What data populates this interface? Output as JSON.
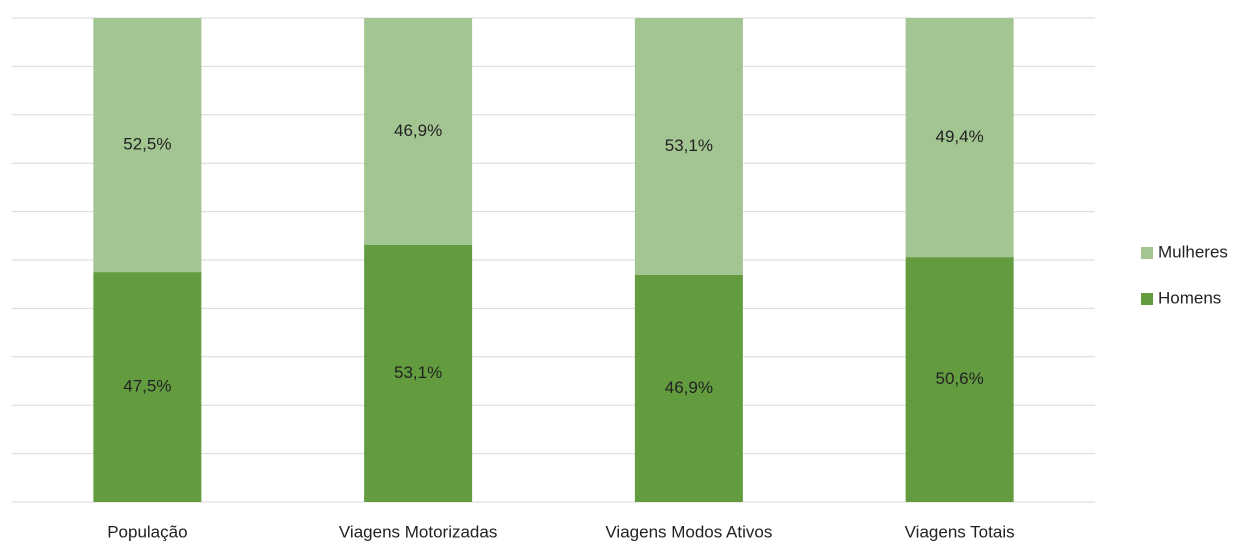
{
  "chart_data": {
    "type": "bar",
    "stacked": true,
    "categories": [
      "População",
      "Viagens Motorizadas",
      "Viagens Modos Ativos",
      "Viagens Totais"
    ],
    "series": [
      {
        "name": "Homens",
        "color": "#629c3f",
        "values": [
          47.5,
          53.1,
          46.9,
          50.6
        ],
        "value_labels": [
          "47,5%",
          "53,1%",
          "46,9%",
          "50,6%"
        ]
      },
      {
        "name": "Mulheres",
        "color": "#a3c592",
        "values": [
          52.5,
          46.9,
          53.1,
          49.4
        ],
        "value_labels": [
          "52,5%",
          "46,9%",
          "53,1%",
          "49,4%"
        ]
      }
    ],
    "ylim": [
      0,
      100
    ],
    "yticks": [
      0,
      10,
      20,
      30,
      40,
      50,
      60,
      70,
      80,
      90,
      100
    ],
    "grid": true,
    "legend": "right"
  }
}
